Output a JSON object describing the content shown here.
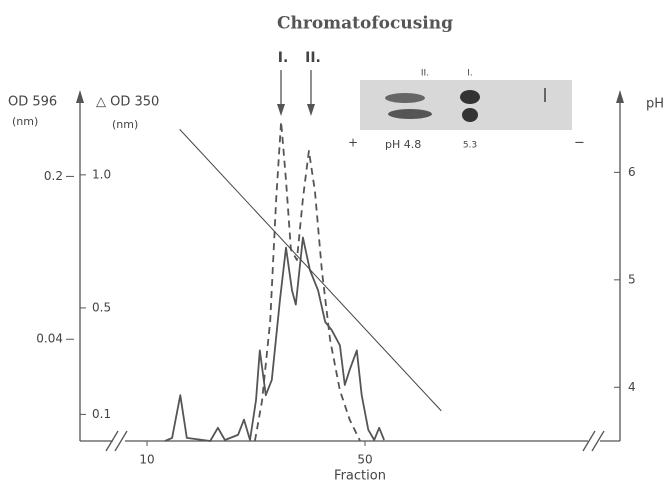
{
  "chart_data": {
    "type": "line",
    "title": "Chromatofocusing",
    "xlabel": "Fraction",
    "ylabel": "OD 596",
    "yunit": "(nm)",
    "y2label": "△ OD 350",
    "y2unit": "(nm)",
    "y3label": "pH",
    "xlim": [
      -2.3,
      96.8
    ],
    "xticks": [
      10,
      50
    ],
    "ylim": [
      -0.06,
      0.28
    ],
    "yticks": [
      0.04,
      0.2
    ],
    "y2lim": [
      0,
      1.3
    ],
    "y2ticks": [
      0.1,
      0.5,
      {
        "value": 1,
        "label": "1.0"
      }
    ],
    "y3lim": [
      3.5,
      6.72
    ],
    "y3ticks": [
      4,
      5,
      6
    ],
    "series": [
      {
        "axis": "y",
        "color": "#555555",
        "linestyle": "solid",
        "x": [
          13.3,
          14.6,
          16.1,
          17.3,
          21.6,
          23.0,
          24.3,
          26.7,
          27.8,
          28.9,
          30.0,
          30.7,
          31.8,
          32.9,
          34.4,
          35.5,
          36.6,
          37.3,
          38.6,
          39.9,
          41.4,
          42.7,
          43.9,
          45.4,
          46.3,
          47.2,
          48.5,
          49.4,
          50.6,
          51.7,
          52.6,
          53.5
        ],
        "values": [
          -0.06,
          -0.057,
          -0.015,
          -0.057,
          -0.06,
          -0.047,
          -0.059,
          -0.054,
          -0.039,
          -0.059,
          -0.02,
          0.029,
          -0.015,
          0.0,
          0.079,
          0.13,
          0.088,
          0.074,
          0.14,
          0.108,
          0.088,
          0.057,
          0.049,
          0.034,
          -0.005,
          0.01,
          0.029,
          -0.015,
          -0.049,
          -0.059,
          -0.047,
          -0.059
        ]
      },
      {
        "axis": "y2",
        "color": "#555555",
        "linestyle": "dashed",
        "x": [
          29.8,
          31.1,
          32.6,
          33.7,
          34.6,
          35.5,
          36.4,
          37.5,
          38.6,
          39.7,
          40.8,
          42.1,
          43.6,
          45.4,
          47.2,
          49.1
        ],
        "values": [
          0,
          0.15,
          0.45,
          0.91,
          1.2,
          0.98,
          0.72,
          0.68,
          0.91,
          1.09,
          0.94,
          0.64,
          0.38,
          0.19,
          0.08,
          0
        ]
      },
      {
        "axis": "y3",
        "color": "#444444",
        "linestyle": "thin",
        "x": [
          16,
          64
        ],
        "values": [
          6.4,
          3.78
        ]
      }
    ],
    "annotations": [
      "I.",
      "II."
    ],
    "inset": {
      "lane_labels": [
        "II.",
        "I."
      ],
      "plus": "+",
      "minus": "−",
      "ph_left": "pH 4.8",
      "ph_right": "5.3"
    }
  }
}
